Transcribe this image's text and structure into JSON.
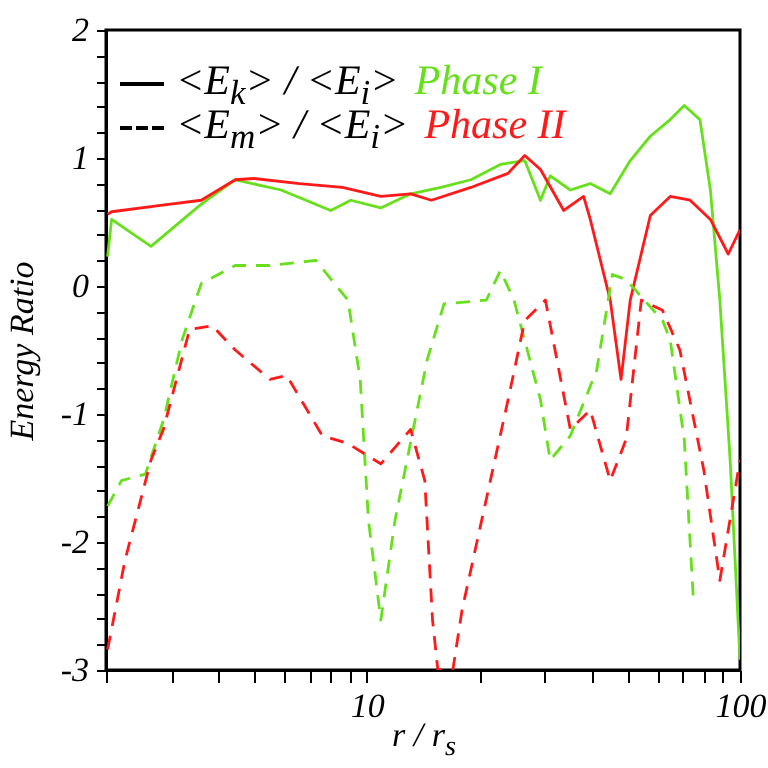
{
  "chart_data": {
    "type": "line",
    "xlabel": "r / r$_{s}$",
    "ylabel": "Energy Ratio",
    "log": "x",
    "xlim": [
      2,
      100
    ],
    "ylim": [
      -3,
      2
    ],
    "xticks": [
      {
        "value": 2,
        "label": null
      },
      {
        "value": 3,
        "label": null
      },
      {
        "value": 4,
        "label": null
      },
      {
        "value": 5,
        "label": null
      },
      {
        "value": 6,
        "label": null
      },
      {
        "value": 7,
        "label": null
      },
      {
        "value": 8,
        "label": null
      },
      {
        "value": 9,
        "label": null
      },
      10,
      {
        "value": 20,
        "label": null
      },
      {
        "value": 30,
        "label": null
      },
      {
        "value": 40,
        "label": null
      },
      {
        "value": 50,
        "label": null
      },
      {
        "value": 60,
        "label": null
      },
      {
        "value": 70,
        "label": null
      },
      {
        "value": 80,
        "label": null
      },
      {
        "value": 90,
        "label": null
      },
      100
    ],
    "yticks": [
      -3,
      {
        "value": -2.8,
        "label": null
      },
      {
        "value": -2.6,
        "label": null
      },
      {
        "value": -2.4,
        "label": null
      },
      {
        "value": -2.2,
        "label": null
      },
      -2,
      {
        "value": -1.8,
        "label": null
      },
      {
        "value": -1.6,
        "label": null
      },
      {
        "value": -1.4,
        "label": null
      },
      {
        "value": -1.2,
        "label": null
      },
      -1,
      {
        "value": -0.8,
        "label": null
      },
      {
        "value": -0.6,
        "label": null
      },
      {
        "value": -0.4,
        "label": null
      },
      {
        "value": -0.2,
        "label": null
      },
      0,
      {
        "value": 0.2,
        "label": null
      },
      {
        "value": 0.4,
        "label": null
      },
      {
        "value": 0.6,
        "label": null
      },
      {
        "value": 0.8,
        "label": null
      },
      1,
      {
        "value": 1.2,
        "label": null
      },
      {
        "value": 1.4,
        "label": null
      },
      {
        "value": 1.6,
        "label": null
      },
      {
        "value": 1.8,
        "label": null
      },
      2
    ],
    "annotations": [
      "<E$_{k}$> / <E$_{i}$>",
      "<E$_{m}$> / <E$_{i}$>"
    ],
    "series": [
      {
        "name": "Phase I",
        "color": "#66e01a",
        "line_style": "solid",
        "x": [
          2.02,
          2.07,
          2.64,
          3.6,
          4.44,
          5.89,
          8.0,
          9.06,
          10.9,
          13.1,
          15.8,
          19.0,
          22.8,
          26.5,
          29.2,
          31.0,
          35.1,
          39.7,
          44.9,
          50.8,
          57.5,
          65.0,
          70.9,
          78.1,
          83.3,
          88.3,
          94.1,
          100
        ],
        "values": [
          0.23,
          0.52,
          0.31,
          0.64,
          0.83,
          0.75,
          0.59,
          0.67,
          0.61,
          0.72,
          0.77,
          0.83,
          0.95,
          0.98,
          0.67,
          0.86,
          0.75,
          0.8,
          0.72,
          0.98,
          1.17,
          1.3,
          1.41,
          1.3,
          0.75,
          -0.11,
          -1.36,
          -2.92
        ]
      },
      {
        "name": "Phase II",
        "color": "#ff1a1a",
        "line_style": "solid",
        "x": [
          2.02,
          2.07,
          2.8,
          3.6,
          4.44,
          4.98,
          6.6,
          8.6,
          10.9,
          13.1,
          14.9,
          19.0,
          23.9,
          26.5,
          29.2,
          33.7,
          38.1,
          39.7,
          44.9,
          48.0,
          50.8,
          57.5,
          65.0,
          73.5,
          83.3,
          93.0,
          100
        ],
        "values": [
          0.56,
          0.58,
          0.63,
          0.67,
          0.83,
          0.84,
          0.8,
          0.77,
          0.7,
          0.72,
          0.67,
          0.77,
          0.88,
          1.02,
          0.91,
          0.59,
          0.7,
          0.52,
          -0.11,
          -0.73,
          -0.11,
          0.55,
          0.7,
          0.67,
          0.52,
          0.25,
          0.44
        ]
      },
      {
        "color": "#66e01a",
        "line_style": "dashed",
        "x": [
          2.02,
          2.2,
          2.55,
          2.85,
          3.2,
          3.6,
          4.44,
          5.5,
          7.3,
          8.9,
          9.6,
          10.1,
          10.9,
          11.9,
          14.5,
          16.1,
          20.9,
          22.8,
          24.8,
          29.2,
          31.0,
          35.1,
          41.3,
          45.5,
          49.5,
          62.0,
          65.0,
          70.9,
          75.0
        ],
        "values": [
          -1.72,
          -1.52,
          -1.47,
          -1.05,
          -0.42,
          0.02,
          0.16,
          0.16,
          0.2,
          -0.11,
          -0.73,
          -1.83,
          -2.61,
          -1.83,
          -0.58,
          -0.14,
          -0.11,
          0.12,
          -0.11,
          -0.89,
          -1.36,
          -1.17,
          -0.66,
          0.09,
          0.05,
          -0.27,
          -0.42,
          -1.2,
          -2.45
        ]
      },
      {
        "color": "#ff1a1a",
        "line_style": "dashed",
        "x": [
          2.02,
          2.25,
          2.64,
          2.85,
          3.35,
          3.85,
          4.44,
          5.5,
          6.1,
          7.6,
          8.9,
          10.9,
          13.1,
          14.3,
          15.0,
          15.5,
          17.0,
          18.0,
          23.9,
          26.5,
          30.1,
          35.1,
          39.7,
          44.9,
          49.5,
          54.4,
          62.0,
          69.0,
          80.0,
          88.3,
          100
        ],
        "values": [
          -2.84,
          -2.14,
          -1.36,
          -1.12,
          -0.34,
          -0.31,
          -0.5,
          -0.73,
          -0.7,
          -1.17,
          -1.23,
          -1.39,
          -1.12,
          -1.52,
          -2.61,
          -3.0,
          -3.0,
          -2.53,
          -0.89,
          -0.27,
          -0.11,
          -1.12,
          -0.97,
          -1.52,
          -1.2,
          -0.11,
          -0.19,
          -0.5,
          -1.44,
          -2.3,
          -1.36
        ]
      }
    ]
  }
}
